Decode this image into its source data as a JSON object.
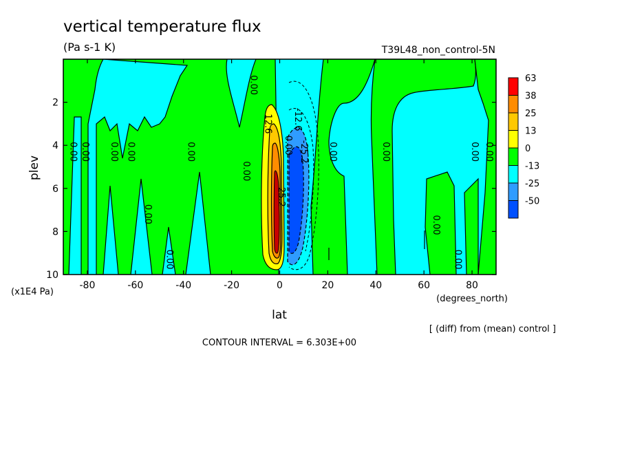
{
  "chart_data": {
    "type": "contour",
    "title": "vertical temperature flux",
    "subtitle": "(Pa s-1 K)",
    "run_label": "T39L48_non_control-5N",
    "xlabel": "lat",
    "x_units": "(degrees_north)",
    "ylabel": "plev",
    "y_units": "(x1E4 Pa)",
    "xlim": [
      -90,
      90
    ],
    "ylim": [
      0,
      10
    ],
    "y_inverted": true,
    "x_ticks": [
      -80,
      -60,
      -40,
      -20,
      0,
      20,
      40,
      60,
      80
    ],
    "x_tick_labels": [
      "-80",
      "-60",
      "-40",
      "-20",
      "0",
      "20",
      "40",
      "60",
      "80"
    ],
    "y_ticks": [
      2,
      4,
      6,
      8,
      10
    ],
    "y_tick_labels": [
      "2",
      "4",
      "6",
      "8",
      "10"
    ],
    "contour_interval_text": "CONTOUR INTERVAL = 6.303E+00",
    "diff_note": "[ (diff) from (mean) control ]",
    "colorbar": {
      "levels": [
        "63",
        "38",
        "25",
        "13",
        "0",
        "-13",
        "-25",
        "-50"
      ],
      "colors": [
        "#ff0000",
        "#ff8c00",
        "#ffc800",
        "#ffff00",
        "#00ff00",
        "#00ffff",
        "#2f9cff",
        "#0050ff"
      ]
    },
    "contour_labels": [
      {
        "text": "0.00",
        "x": -87,
        "y": 4.3
      },
      {
        "text": "0.00",
        "x": -82,
        "y": 4.3
      },
      {
        "text": "0.00",
        "x": -70,
        "y": 4.3
      },
      {
        "text": "0.00",
        "x": -63,
        "y": 4.3
      },
      {
        "text": "0.00",
        "x": -56,
        "y": 7.2
      },
      {
        "text": "0.00",
        "x": -47,
        "y": 9.3
      },
      {
        "text": "0.00",
        "x": -38,
        "y": 4.3
      },
      {
        "text": "0.00",
        "x": -15,
        "y": 5.2
      },
      {
        "text": "0.00",
        "x": -12,
        "y": 1.2
      },
      {
        "text": "12.6",
        "x": -6,
        "y": 3.0
      },
      {
        "text": "25.2",
        "x": -0.5,
        "y": 6.4
      },
      {
        "text": "0.00",
        "x": 2.5,
        "y": 4.0
      },
      {
        "text": "-12.6",
        "x": 6.5,
        "y": 2.8
      },
      {
        "text": "-25.2",
        "x": 9,
        "y": 4.3
      },
      {
        "text": "0.00",
        "x": 21,
        "y": 4.3
      },
      {
        "text": "0.00",
        "x": 43,
        "y": 4.3
      },
      {
        "text": "0.00",
        "x": 64,
        "y": 7.7
      },
      {
        "text": "0.00",
        "x": 73,
        "y": 9.3
      },
      {
        "text": "0.00",
        "x": 80,
        "y": 4.3
      },
      {
        "text": "0.00",
        "x": 86,
        "y": 4.3
      }
    ]
  }
}
